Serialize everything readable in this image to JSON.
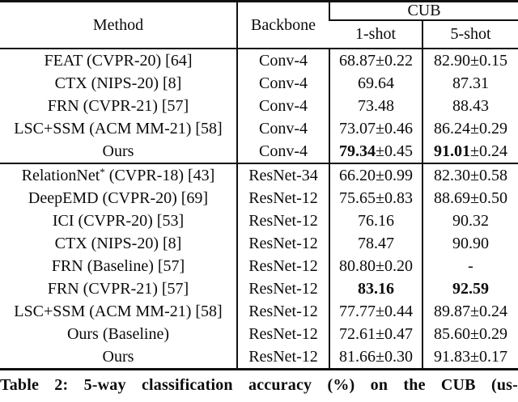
{
  "colors": {
    "text": "#0b0b0b",
    "rule": "#101010",
    "background": "#ffffff"
  },
  "table": {
    "header": {
      "method": "Method",
      "backbone": "Backbone",
      "group": "CUB",
      "one_shot": "1-shot",
      "five_shot": "5-shot"
    },
    "groups": [
      {
        "rows": [
          {
            "method": {
              "text": "FEAT (CVPR-20) [64]",
              "sup": "",
              "after": ""
            },
            "backbone": "Conv-4",
            "one_shot": {
              "bold": "",
              "normal": "68.87±0.22"
            },
            "five_shot": {
              "bold": "",
              "normal": "82.90±0.15"
            }
          },
          {
            "method": {
              "text": "CTX (NIPS-20) [8]",
              "sup": "",
              "after": ""
            },
            "backbone": "Conv-4",
            "one_shot": {
              "bold": "",
              "normal": "69.64"
            },
            "five_shot": {
              "bold": "",
              "normal": "87.31"
            }
          },
          {
            "method": {
              "text": "FRN (CVPR-21) [57]",
              "sup": "",
              "after": ""
            },
            "backbone": "Conv-4",
            "one_shot": {
              "bold": "",
              "normal": "73.48"
            },
            "five_shot": {
              "bold": "",
              "normal": "88.43"
            }
          },
          {
            "method": {
              "text": "LSC+SSM (ACM MM-21) [58]",
              "sup": "",
              "after": ""
            },
            "backbone": "Conv-4",
            "one_shot": {
              "bold": "",
              "normal": "73.07±0.46"
            },
            "five_shot": {
              "bold": "",
              "normal": "86.24±0.29"
            }
          },
          {
            "method": {
              "text": "Ours",
              "sup": "",
              "after": ""
            },
            "backbone": "Conv-4",
            "one_shot": {
              "bold": "79.34",
              "normal": "±0.45"
            },
            "five_shot": {
              "bold": "91.01",
              "normal": "±0.24"
            }
          }
        ]
      },
      {
        "rows": [
          {
            "method": {
              "text": "RelationNet",
              "sup": "*",
              "after": " (CVPR-18) [43]"
            },
            "backbone": "ResNet-34",
            "one_shot": {
              "bold": "",
              "normal": "66.20±0.99"
            },
            "five_shot": {
              "bold": "",
              "normal": "82.30±0.58"
            }
          },
          {
            "method": {
              "text": "DeepEMD (CVPR-20) [69]",
              "sup": "",
              "after": ""
            },
            "backbone": "ResNet-12",
            "one_shot": {
              "bold": "",
              "normal": "75.65±0.83"
            },
            "five_shot": {
              "bold": "",
              "normal": "88.69±0.50"
            }
          },
          {
            "method": {
              "text": "ICI (CVPR-20) [53]",
              "sup": "",
              "after": ""
            },
            "backbone": "ResNet-12",
            "one_shot": {
              "bold": "",
              "normal": "76.16"
            },
            "five_shot": {
              "bold": "",
              "normal": "90.32"
            }
          },
          {
            "method": {
              "text": "CTX (NIPS-20) [8]",
              "sup": "",
              "after": ""
            },
            "backbone": "ResNet-12",
            "one_shot": {
              "bold": "",
              "normal": "78.47"
            },
            "five_shot": {
              "bold": "",
              "normal": "90.90"
            }
          },
          {
            "method": {
              "text": "FRN (Baseline) [57]",
              "sup": "",
              "after": ""
            },
            "backbone": "ResNet-12",
            "one_shot": {
              "bold": "",
              "normal": "80.80±0.20"
            },
            "five_shot": {
              "bold": "",
              "normal": "-"
            }
          },
          {
            "method": {
              "text": "FRN (CVPR-21) [57]",
              "sup": "",
              "after": ""
            },
            "backbone": "ResNet-12",
            "one_shot": {
              "bold": "83.16",
              "normal": ""
            },
            "five_shot": {
              "bold": "92.59",
              "normal": ""
            }
          },
          {
            "method": {
              "text": "LSC+SSM (ACM MM-21) [58]",
              "sup": "",
              "after": ""
            },
            "backbone": "ResNet-12",
            "one_shot": {
              "bold": "",
              "normal": "77.77±0.44"
            },
            "five_shot": {
              "bold": "",
              "normal": "89.87±0.24"
            }
          },
          {
            "method": {
              "text": "Ours (Baseline)",
              "sup": "",
              "after": ""
            },
            "backbone": "ResNet-12",
            "one_shot": {
              "bold": "",
              "normal": "72.61±0.47"
            },
            "five_shot": {
              "bold": "",
              "normal": "85.60±0.29"
            }
          },
          {
            "method": {
              "text": "Ours",
              "sup": "",
              "after": ""
            },
            "backbone": "ResNet-12",
            "one_shot": {
              "bold": "",
              "normal": "81.66±0.30"
            },
            "five_shot": {
              "bold": "",
              "normal": "91.83±0.17"
            }
          }
        ]
      }
    ]
  },
  "caption": "Table 2: 5-way classification accuracy (%) on the CUB (us-"
}
